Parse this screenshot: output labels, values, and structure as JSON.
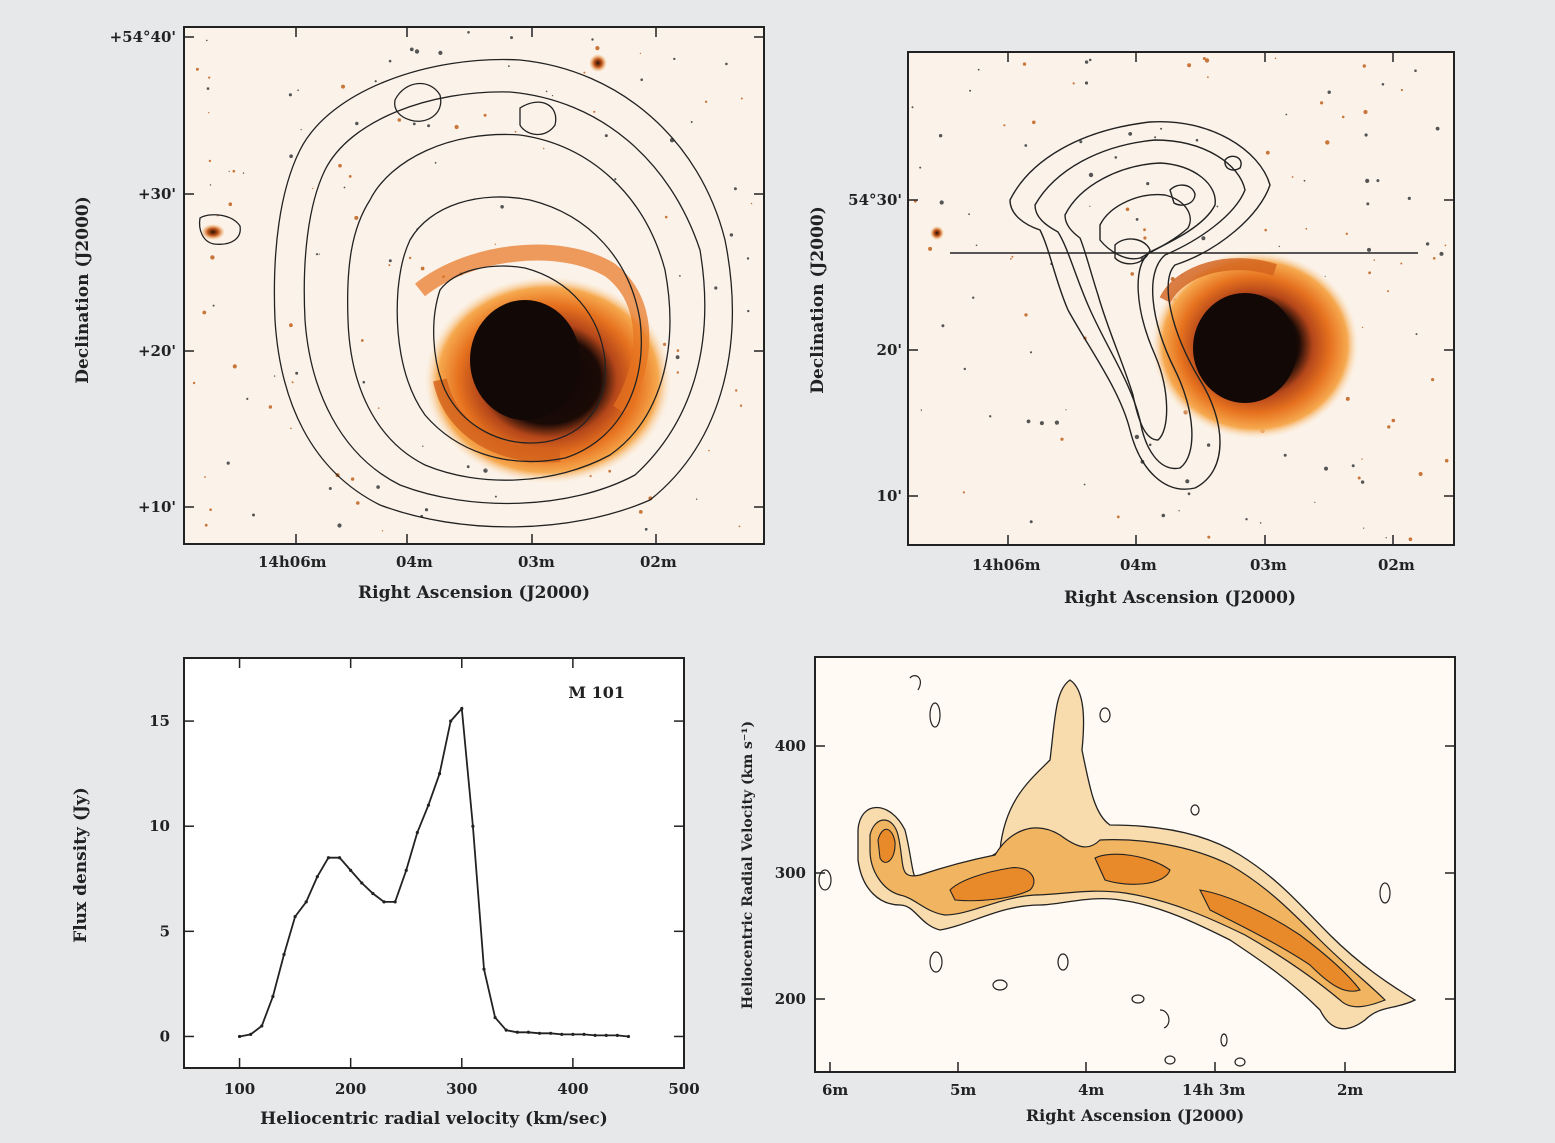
{
  "colors": {
    "background": "#e6e8ea",
    "panel_bg": "#ffffff",
    "sky": "#fbf3ea",
    "galaxy_outer": "#f6a94f",
    "galaxy_mid": "#e7731f",
    "galaxy_core": "#120806",
    "contour": "#222222",
    "pv_fill_light": "#f8dcae",
    "pv_fill_mid": "#f1b460",
    "pv_fill_dark": "#e88a2a"
  },
  "panels": {
    "top_left": {
      "ylabel": "Declination (J2000)",
      "xlabel": "Right Ascension (J2000)",
      "x_ticks": [
        "14h06m",
        "04m",
        "03m",
        "02m"
      ],
      "y_ticks": [
        "+54°40'",
        "+30'",
        "+20'",
        "+10'"
      ]
    },
    "top_right": {
      "ylabel": "Declination (J2000)",
      "xlabel": "Right Ascension (J2000)",
      "x_ticks": [
        "14h06m",
        "04m",
        "03m",
        "02m"
      ],
      "y_ticks": [
        "54°30'",
        "20'",
        "10'"
      ]
    },
    "bottom_right": {
      "ylabel": "Heliocentric Radial Velocity (km s⁻¹)",
      "xlabel": "Right Ascension (J2000)",
      "x_ticks": [
        "6m",
        "5m",
        "4m",
        "14h 3m",
        "2m"
      ],
      "y_ticks": [
        "400",
        "300",
        "200"
      ]
    }
  },
  "chart_data": {
    "type": "line",
    "label": "M 101",
    "xlabel": "Heliocentric radial velocity  (km/sec)",
    "ylabel": "Flux density (Jy)",
    "xlim": [
      50,
      500
    ],
    "ylim": [
      -1.5,
      18
    ],
    "x_ticks": [
      100,
      200,
      300,
      400,
      500
    ],
    "y_ticks": [
      0,
      5,
      10,
      15
    ],
    "x": [
      100,
      110,
      120,
      130,
      140,
      150,
      160,
      170,
      180,
      190,
      200,
      210,
      220,
      230,
      240,
      250,
      260,
      270,
      280,
      290,
      300,
      310,
      320,
      330,
      340,
      350,
      360,
      370,
      380,
      390,
      400,
      410,
      420,
      430,
      440,
      450
    ],
    "y": [
      0,
      0.1,
      0.5,
      1.9,
      3.9,
      5.7,
      6.4,
      7.6,
      8.5,
      8.5,
      7.9,
      7.3,
      6.8,
      6.4,
      6.4,
      7.9,
      9.7,
      11.0,
      12.5,
      15.0,
      15.6,
      10.0,
      3.2,
      0.9,
      0.3,
      0.2,
      0.2,
      0.15,
      0.15,
      0.1,
      0.1,
      0.1,
      0.05,
      0.05,
      0.05,
      0.0
    ]
  }
}
